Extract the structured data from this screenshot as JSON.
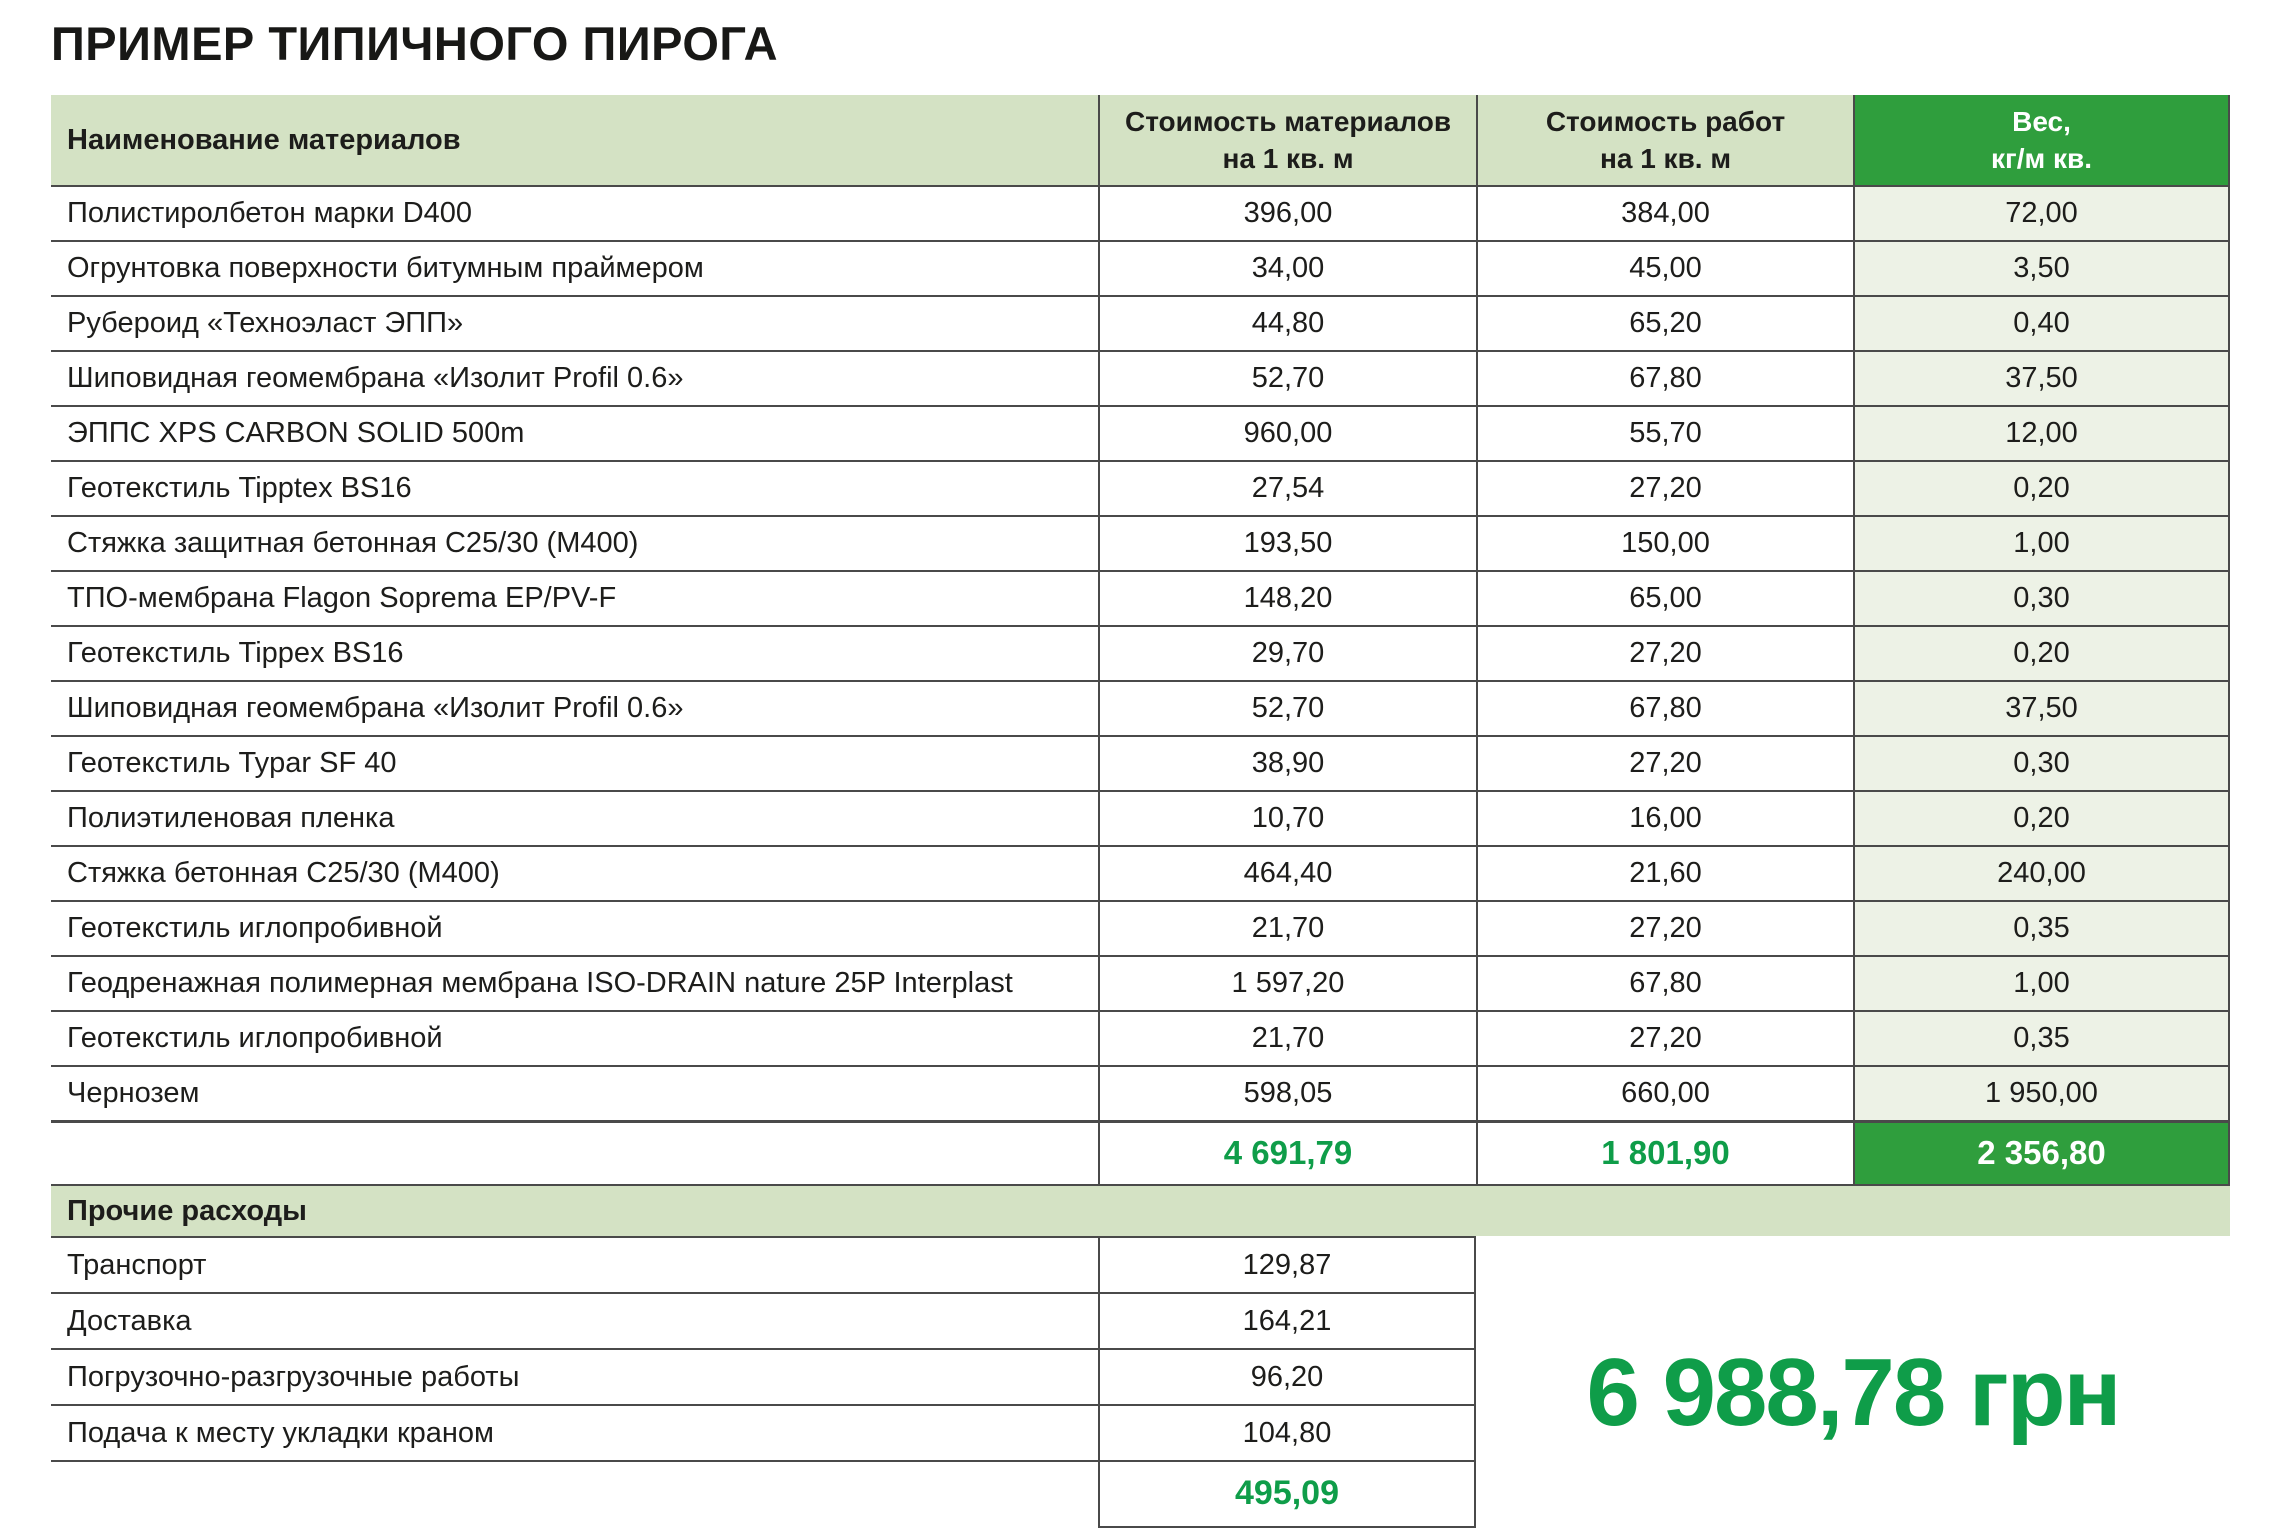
{
  "title": "ПРИМЕР ТИПИЧНОГО ПИРОГА",
  "colors": {
    "green_fill": "#2f9e3d",
    "green_text": "#0f9d49",
    "header_bg": "#d4e2c4",
    "weight_col_bg": "#edf2e6",
    "border": "#4a4a4a"
  },
  "table": {
    "columns": [
      {
        "line1": "Наименование материалов",
        "line2": ""
      },
      {
        "line1": "Стоимость материалов",
        "line2": "на 1 кв. м"
      },
      {
        "line1": "Стоимость работ",
        "line2": "на 1 кв. м"
      },
      {
        "line1": "Вес,",
        "line2": "кг/м кв."
      }
    ],
    "rows": [
      [
        "Полистиролбетон марки D400",
        "396,00",
        "384,00",
        "72,00"
      ],
      [
        "Огрунтовка поверхности битумным праймером",
        "34,00",
        "45,00",
        "3,50"
      ],
      [
        "Рубероид «Техноэласт ЭПП»",
        "44,80",
        "65,20",
        "0,40"
      ],
      [
        "Шиповидная геомембрана «Изолит Profil 0.6»",
        "52,70",
        "67,80",
        "37,50"
      ],
      [
        "ЭППС XPS CARBON SOLID 500m",
        "960,00",
        "55,70",
        "12,00"
      ],
      [
        "Геотекстиль Tipptex BS16",
        "27,54",
        "27,20",
        "0,20"
      ],
      [
        "Стяжка защитная бетонная С25/30 (М400)",
        "193,50",
        "150,00",
        "1,00"
      ],
      [
        "ТПО-мембрана Flagon Soprema EP/PV-F",
        "148,20",
        "65,00",
        "0,30"
      ],
      [
        "Геотекстиль Tippex BS16",
        "29,70",
        "27,20",
        "0,20"
      ],
      [
        "Шиповидная геомембрана «Изолит Profil 0.6»",
        "52,70",
        "67,80",
        "37,50"
      ],
      [
        "Геотекстиль Typar SF 40",
        "38,90",
        "27,20",
        "0,30"
      ],
      [
        "Полиэтиленовая пленка",
        "10,70",
        "16,00",
        "0,20"
      ],
      [
        "Стяжка бетонная С25/30 (М400)",
        "464,40",
        "21,60",
        "240,00"
      ],
      [
        "Геотекстиль иглопробивной",
        "21,70",
        "27,20",
        "0,35"
      ],
      [
        "Геодренажная полимерная мембрана ISO-DRAIN nature 25P Interplast",
        "1 597,20",
        "67,80",
        "1,00"
      ],
      [
        "Геотекстиль иглопробивной",
        "21,70",
        "27,20",
        "0,35"
      ],
      [
        "Чернозем",
        "598,05",
        "660,00",
        "1 950,00"
      ]
    ],
    "totals": {
      "materials": "4 691,79",
      "works": "1 801,90",
      "weight": "2 356,80"
    }
  },
  "other_expenses": {
    "header": "Прочие расходы",
    "rows": [
      [
        "Транспорт",
        "129,87"
      ],
      [
        "Доставка",
        "164,21"
      ],
      [
        "Погрузочно-разгрузочные работы",
        "96,20"
      ],
      [
        "Подача к месту укладки краном",
        "104,80"
      ]
    ],
    "total": "495,09"
  },
  "grand_total": {
    "value": "6 988,78 грн"
  }
}
